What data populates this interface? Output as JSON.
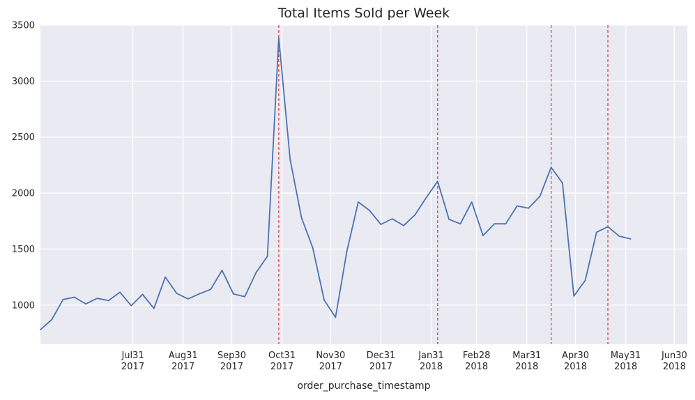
{
  "chart_data": {
    "type": "line",
    "title": "Total Items Sold per Week",
    "xlabel": "order_purchase_timestamp",
    "ylabel": "",
    "ylim": [
      650,
      3500
    ],
    "yticks": [
      1000,
      1500,
      2000,
      2500,
      3000,
      3500
    ],
    "grid": true,
    "x_range": [
      "2017-06-04",
      "2018-07-08"
    ],
    "xticks": [
      {
        "date": "2017-07-31",
        "label": [
          "Jul31",
          "2017"
        ]
      },
      {
        "date": "2017-08-31",
        "label": [
          "Aug31",
          "2017"
        ]
      },
      {
        "date": "2017-09-30",
        "label": [
          "Sep30",
          "2017"
        ]
      },
      {
        "date": "2017-10-31",
        "label": [
          "Oct31",
          "2017"
        ]
      },
      {
        "date": "2017-11-30",
        "label": [
          "Nov30",
          "2017"
        ]
      },
      {
        "date": "2017-12-31",
        "label": [
          "Dec31",
          "2017"
        ]
      },
      {
        "date": "2018-01-31",
        "label": [
          "Jan31",
          "2018"
        ]
      },
      {
        "date": "2018-02-28",
        "label": [
          "Feb28",
          "2018"
        ]
      },
      {
        "date": "2018-03-31",
        "label": [
          "Mar31",
          "2018"
        ]
      },
      {
        "date": "2018-04-30",
        "label": [
          "Apr30",
          "2018"
        ]
      },
      {
        "date": "2018-05-31",
        "label": [
          "May31",
          "2018"
        ]
      },
      {
        "date": "2018-06-30",
        "label": [
          "Jun30",
          "2018"
        ]
      }
    ],
    "series": [
      {
        "color": "#4c72b0",
        "points": [
          [
            "2017-06-04",
            780
          ],
          [
            "2017-06-11",
            870
          ],
          [
            "2017-06-18",
            1050
          ],
          [
            "2017-06-25",
            1070
          ],
          [
            "2017-07-02",
            1010
          ],
          [
            "2017-07-09",
            1060
          ],
          [
            "2017-07-16",
            1040
          ],
          [
            "2017-07-23",
            1115
          ],
          [
            "2017-07-30",
            995
          ],
          [
            "2017-08-06",
            1095
          ],
          [
            "2017-08-13",
            970
          ],
          [
            "2017-08-20",
            1250
          ],
          [
            "2017-08-27",
            1105
          ],
          [
            "2017-09-03",
            1055
          ],
          [
            "2017-09-10",
            1100
          ],
          [
            "2017-09-17",
            1140
          ],
          [
            "2017-09-24",
            1310
          ],
          [
            "2017-10-01",
            1100
          ],
          [
            "2017-10-08",
            1075
          ],
          [
            "2017-10-15",
            1290
          ],
          [
            "2017-10-22",
            1435
          ],
          [
            "2017-10-29",
            3385
          ],
          [
            "2017-11-05",
            2300
          ],
          [
            "2017-11-12",
            1780
          ],
          [
            "2017-11-19",
            1510
          ],
          [
            "2017-11-26",
            1045
          ],
          [
            "2017-12-03",
            890
          ],
          [
            "2017-12-10",
            1480
          ],
          [
            "2017-12-17",
            1920
          ],
          [
            "2017-12-24",
            1845
          ],
          [
            "2017-12-31",
            1720
          ],
          [
            "2018-01-07",
            1770
          ],
          [
            "2018-01-14",
            1710
          ],
          [
            "2018-01-21",
            1805
          ],
          [
            "2018-01-28",
            1960
          ],
          [
            "2018-02-04",
            2105
          ],
          [
            "2018-02-11",
            1765
          ],
          [
            "2018-02-18",
            1725
          ],
          [
            "2018-02-25",
            1920
          ],
          [
            "2018-03-04",
            1620
          ],
          [
            "2018-03-11",
            1725
          ],
          [
            "2018-03-18",
            1725
          ],
          [
            "2018-03-25",
            1885
          ],
          [
            "2018-04-01",
            1865
          ],
          [
            "2018-04-08",
            1970
          ],
          [
            "2018-04-15",
            2230
          ],
          [
            "2018-04-22",
            2090
          ],
          [
            "2018-04-29",
            1080
          ],
          [
            "2018-05-06",
            1220
          ],
          [
            "2018-05-13",
            1650
          ],
          [
            "2018-05-20",
            1700
          ],
          [
            "2018-05-27",
            1615
          ],
          [
            "2018-06-03",
            1590
          ]
        ]
      }
    ],
    "vlines": {
      "color": "#d62728",
      "style": "dashed",
      "dates": [
        "2017-10-29",
        "2018-02-04",
        "2018-04-15",
        "2018-05-20"
      ]
    }
  }
}
